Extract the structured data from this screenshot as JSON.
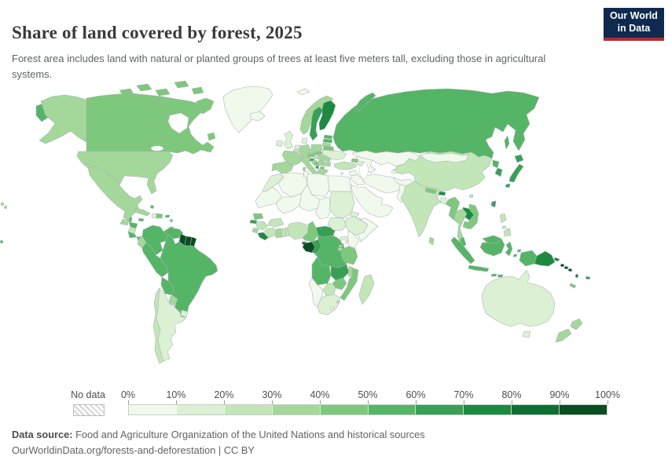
{
  "header": {
    "title": "Share of land covered by forest, 2025",
    "subtitle": "Forest area includes land with natural or planted groups of trees at least five meters tall, excluding those in agricultural systems.",
    "logo": {
      "line1": "Our World",
      "line2": "in Data",
      "bg_color": "#0f2a4e",
      "accent_color": "#c0262b"
    }
  },
  "legend": {
    "no_data_label": "No data",
    "tick_labels": [
      "0%",
      "10%",
      "20%",
      "30%",
      "40%",
      "50%",
      "60%",
      "70%",
      "80%",
      "90%",
      "100%"
    ],
    "bin_colors": [
      "#f1f9ed",
      "#dcf0d4",
      "#c2e6b8",
      "#a3d89a",
      "#7ec87d",
      "#55b567",
      "#37a055",
      "#1d8941",
      "#0e7030",
      "#0a4e21"
    ]
  },
  "footer": {
    "source_label": "Data source:",
    "source_text": " Food and Agriculture Organization of the United Nations and historical sources",
    "link_text": "OurWorldinData.org/forests-and-deforestation | CC BY"
  },
  "chart_data": {
    "type": "heatmap",
    "subtype": "world-choropleth",
    "title": "Share of land covered by forest, 2025",
    "unit": "%",
    "bin_edges": [
      0,
      10,
      20,
      30,
      40,
      50,
      60,
      70,
      80,
      90,
      100
    ],
    "legend_position": "bottom",
    "values": {
      "greenland": 0,
      "canada": 41,
      "usa": 34,
      "mexico": 34,
      "guatemala": 33,
      "belize": 56,
      "honduras": 57,
      "nicaragua": 28,
      "costa_rica": 59,
      "panama": 57,
      "cuba": 32,
      "jamaica": 55,
      "haiti": 13,
      "dominican_republic": 44,
      "puerto_rico": 56,
      "bahamas": 51,
      "guadeloupe": 43,
      "trinidad_and_tobago": 44,
      "colombia": 53,
      "venezuela": 52,
      "guyana": 93,
      "suriname": 97,
      "french_guiana": 96,
      "ecuador": 39,
      "peru": 57,
      "brazil": 59,
      "bolivia": 51,
      "paraguay": 38,
      "uruguay": 11,
      "argentina": 10,
      "chile": 25,
      "iceland": 2,
      "ireland": 11,
      "united_kingdom": 13,
      "norway": 33,
      "sweden": 69,
      "finland": 74,
      "denmark": 16,
      "estonia": 56,
      "latvia": 55,
      "lithuania": 35,
      "belarus": 43,
      "poland": 31,
      "germany": 33,
      "netherlands": 11,
      "belgium": 23,
      "france": 32,
      "spain": 37,
      "portugal": 36,
      "italy": 32,
      "switzerland": 32,
      "austria": 47,
      "czechia": 35,
      "slovakia": 40,
      "hungary": 23,
      "slovenia": 61,
      "croatia": 35,
      "bosnia_and_herzegovina": 43,
      "serbia": 31,
      "montenegro": 61,
      "albania": 29,
      "north_macedonia": 40,
      "greece": 30,
      "bulgaria": 36,
      "romania": 30,
      "moldova": 13,
      "ukraine": 17,
      "russia": 50,
      "svalbard": 1,
      "turkey": 29,
      "cyprus": 19,
      "georgia": 41,
      "azerbaijan": 14,
      "kazakhstan": 1,
      "uzbekistan": 8,
      "kyrgyzstan": 7,
      "tajikistan": 3,
      "iran": 7,
      "afghanistan": 2,
      "pakistan": 5,
      "iraq": 2,
      "syria": 3,
      "saudi_arabia": 1,
      "israel": 8,
      "morocco": 13,
      "algeria": 1,
      "tunisia": 5,
      "libya": 0,
      "egypt": 0,
      "mauritania": 0,
      "mali": 4,
      "niger": 1,
      "chad": 3,
      "sudan": 10,
      "eritrea": 10,
      "djibouti": 0,
      "senegal": 42,
      "guinea_bissau": 69,
      "guinea": 24,
      "sierra_leone": 34,
      "liberia": 78,
      "ivory_coast": 22,
      "ghana": 34,
      "togo": 21,
      "benin": 27,
      "burkina_faso": 22,
      "nigeria": 21,
      "cameroon": 42,
      "central_african_republic": 60,
      "south_sudan": 11,
      "ethiopia": 15,
      "somalia": 9,
      "kenya": 6,
      "uganda": 12,
      "rwanda": 30,
      "burundi": 28,
      "drc": 56,
      "equatorial_guinea": 87,
      "gabon": 91,
      "congo": 64,
      "tanzania": 48,
      "angola": 52,
      "zambia": 60,
      "malawi": 33,
      "mozambique": 43,
      "zimbabwe": 40,
      "botswana": 26,
      "namibia": 8,
      "south_africa": 14,
      "lesotho": 1,
      "eswatini": 29,
      "madagascar": 21,
      "india": 24,
      "nepal": 41,
      "bhutan": 72,
      "bangladesh": 14,
      "sri_lanka": 34,
      "china": 24,
      "mongolia": 9,
      "north_korea": 54,
      "south_korea": 64,
      "japan": 68,
      "taiwan": 60,
      "myanmar": 43,
      "thailand": 39,
      "laos": 72,
      "vietnam": 47,
      "cambodia": 45,
      "malaysia": 58,
      "indonesia": 53,
      "philippines": 24,
      "papua_new_guinea": 79,
      "solomon_islands": 90,
      "vanuatu": 74,
      "fiji": 62,
      "new_caledonia": 46,
      "samoa": 57,
      "australia": 17,
      "new_zealand": 38
    }
  }
}
